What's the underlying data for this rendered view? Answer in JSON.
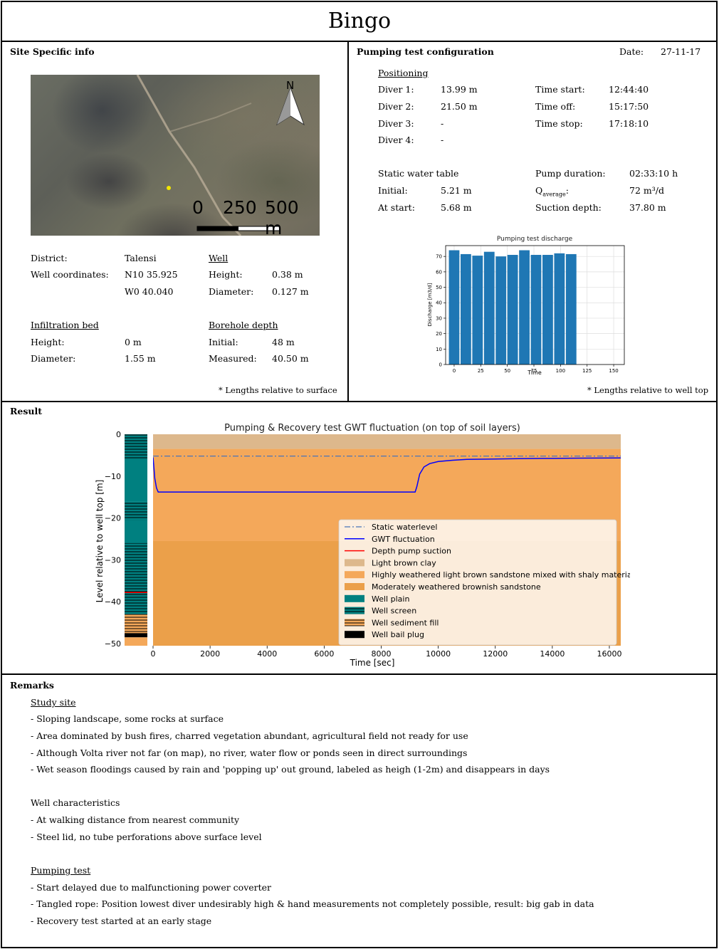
{
  "title": "Bingo",
  "site": {
    "heading": "Site Specific info",
    "map": {
      "north_label": "N",
      "scale_labels": [
        "0",
        "250",
        "500 m"
      ]
    },
    "district_label": "District:",
    "district_value": "Talensi",
    "coords_label": "Well coordinates:",
    "coord_n": "N10 35.925",
    "coord_w": "W0 40.040",
    "well_heading": "Well",
    "well_height_label": "Height:",
    "well_height_value": "0.38 m",
    "well_diameter_label": "Diameter:",
    "well_diameter_value": "0.127 m",
    "infil_heading": "Infiltration bed",
    "infil_height_label": "Height:",
    "infil_height_value": "0 m",
    "infil_diameter_label": "Diameter:",
    "infil_diameter_value": "1.55 m",
    "bore_heading": "Borehole depth",
    "bore_initial_label": "Initial:",
    "bore_initial_value": "48 m",
    "bore_measured_label": "Measured:",
    "bore_measured_value": "40.50 m",
    "note": "* Lengths relative to surface"
  },
  "pump": {
    "heading": "Pumping test configuration",
    "date_label": "Date:",
    "date_value": "27-11-17",
    "positioning_heading": "Positioning",
    "divers": [
      {
        "label": "Diver 1:",
        "value": "13.99 m"
      },
      {
        "label": "Diver 2:",
        "value": "21.50 m"
      },
      {
        "label": "Diver 3:",
        "value": "-"
      },
      {
        "label": "Diver 4:",
        "value": "-"
      }
    ],
    "times": [
      {
        "label": "Time start:",
        "value": "12:44:40"
      },
      {
        "label": "Time off:",
        "value": "15:17:50"
      },
      {
        "label": "Time stop:",
        "value": "17:18:10"
      }
    ],
    "static_heading": "Static water table",
    "initial_label": "Initial:",
    "initial_value": "5.21 m",
    "atstart_label": "At start:",
    "atstart_value": "5.68 m",
    "duration_label": "Pump duration:",
    "duration_value": "02:33:10 h",
    "q_label": "Q",
    "q_sub": "average",
    "q_suffix": ":",
    "q_value": "72 m³/d",
    "suction_label": "Suction depth:",
    "suction_value": "37.80 m",
    "note": "* Lengths relative to well top"
  },
  "result": {
    "heading": "Result"
  },
  "remarks": {
    "heading": "Remarks",
    "sections": [
      {
        "title": "Study site",
        "underline": true,
        "items": [
          "- Sloping landscape, some rocks at surface",
          "- Area dominated by bush fires, charred vegetation abundant, agricultural field not ready for use",
          "- Although Volta river not far (on map), no river, water flow or ponds seen in direct surroundings",
          "- Wet season floodings caused by rain and 'popping up' out ground, labeled as heigh (1-2m) and disappears in days"
        ]
      },
      {
        "title": "Well characteristics",
        "underline": false,
        "items": [
          "- At walking distance from nearest community",
          "- Steel lid, no tube perforations above surface level"
        ]
      },
      {
        "title": "Pumping test",
        "underline": true,
        "items": [
          "- Start delayed due to malfunctioning power coverter",
          "- Tangled rope: Position lowest diver undesirably high & hand measurements not completely possible, result: big gab in data",
          "- Recovery test started at an early stage"
        ]
      }
    ]
  },
  "chart_data": [
    {
      "type": "bar",
      "title": "Pumping test discharge",
      "xlabel": "Time",
      "ylabel": "Discharge [m3/d]",
      "x": [
        0,
        11,
        22,
        33,
        44,
        55,
        66,
        77,
        88,
        99,
        110
      ],
      "values": [
        74,
        71.5,
        70.5,
        73,
        70,
        71,
        74,
        71,
        71,
        72,
        71.5
      ],
      "xlim": [
        -8,
        160
      ],
      "ylim": [
        0,
        77
      ],
      "xticks": [
        0,
        25,
        50,
        75,
        100,
        125,
        150
      ],
      "yticks": [
        0,
        10,
        20,
        30,
        40,
        50,
        60,
        70
      ],
      "color": "#1f77b4"
    },
    {
      "type": "line",
      "title": "Pumping & Recovery test GWT fluctuation (on top of soil layers)",
      "xlabel": "Time [sec]",
      "ylabel": "Level relative to well top [m]",
      "xlim": [
        0,
        16400
      ],
      "ylim": [
        -50.5,
        0
      ],
      "xticks": [
        0,
        2000,
        4000,
        6000,
        8000,
        10000,
        12000,
        14000,
        16000
      ],
      "yticks": [
        0,
        -10,
        -20,
        -30,
        -40,
        -50
      ],
      "static_level": -5.21,
      "gwt": {
        "x": [
          0,
          60,
          120,
          180,
          9190,
          9250,
          9350,
          9500,
          9700,
          10000,
          10500,
          11000,
          12000,
          13000,
          14000,
          15000,
          16400
        ],
        "y": [
          -5.5,
          -10.5,
          -12.8,
          -13.8,
          -13.8,
          -12.5,
          -9.5,
          -7.8,
          -7.0,
          -6.5,
          -6.2,
          -6.0,
          -5.9,
          -5.8,
          -5.75,
          -5.7,
          -5.65
        ]
      },
      "pump_suction_depth": -37.8,
      "layers": [
        {
          "name": "Light brown clay",
          "top": 0,
          "bottom": -3.5,
          "color": "#ddb88c"
        },
        {
          "name": "Highly weathered light brown sandstone mixed with shaly materials",
          "top": -3.5,
          "bottom": -25.5,
          "color": "#f4a85a"
        },
        {
          "name": "Moderately weathered brownish sandstone",
          "top": -25.5,
          "bottom": -50.5,
          "color": "#eba04a"
        }
      ],
      "well_column": {
        "plain_color": "#008080",
        "screen_top": -16,
        "screen_bottom": -43,
        "sediment_top": -43,
        "sediment_bottom": -48,
        "bail_top": -47.5,
        "bail_bottom": -48.5
      },
      "legend": [
        {
          "label": "Static waterlevel",
          "kind": "dashdot",
          "color": "#4a74b8"
        },
        {
          "label": "GWT fluctuation",
          "kind": "line",
          "color": "#0000ff"
        },
        {
          "label": "Depth pump suction",
          "kind": "line",
          "color": "#ff0000"
        },
        {
          "label": "Light brown clay",
          "kind": "patch",
          "color": "#ddb88c"
        },
        {
          "label": "Highly weathered light brown sandstone mixed with shaly materials",
          "kind": "patch",
          "color": "#f4a85a"
        },
        {
          "label": "Moderately weathered brownish sandstone",
          "kind": "patch",
          "color": "#eba04a"
        },
        {
          "label": "Well plain",
          "kind": "patch",
          "color": "#008080"
        },
        {
          "label": "Well screen",
          "kind": "hatch",
          "color": "#008080"
        },
        {
          "label": "Well sediment fill",
          "kind": "hatchorange",
          "color": "#f4a85a"
        },
        {
          "label": "Well bail plug",
          "kind": "patch",
          "color": "#000000"
        }
      ],
      "legend_position": "lower-right"
    }
  ]
}
